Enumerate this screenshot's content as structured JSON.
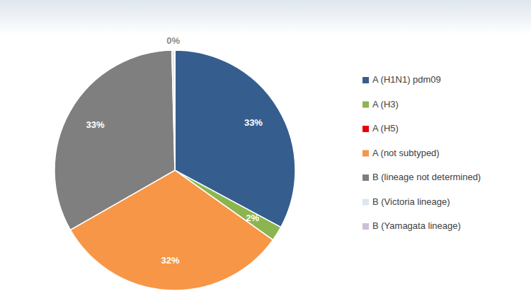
{
  "chart_data": {
    "type": "pie",
    "categories": [
      "A (H1N1) pdm09",
      "A (H3)",
      "A (H5)",
      "A (not subtyped)",
      "B (lineage not determined)",
      "B (Victoria lineage)",
      "B (Yamagata lineage)"
    ],
    "values": [
      33,
      2,
      0,
      32,
      33,
      0.4,
      0
    ],
    "value_labels": [
      "33%",
      "2%",
      null,
      "32%",
      "33%",
      "0%",
      null
    ],
    "colors": [
      "#355e8e",
      "#8cb54f",
      "#e8000b",
      "#f79646",
      "#7f7f7f",
      "#dce6f2",
      "#ccc0da"
    ],
    "data_labels": true,
    "legend": "right"
  }
}
